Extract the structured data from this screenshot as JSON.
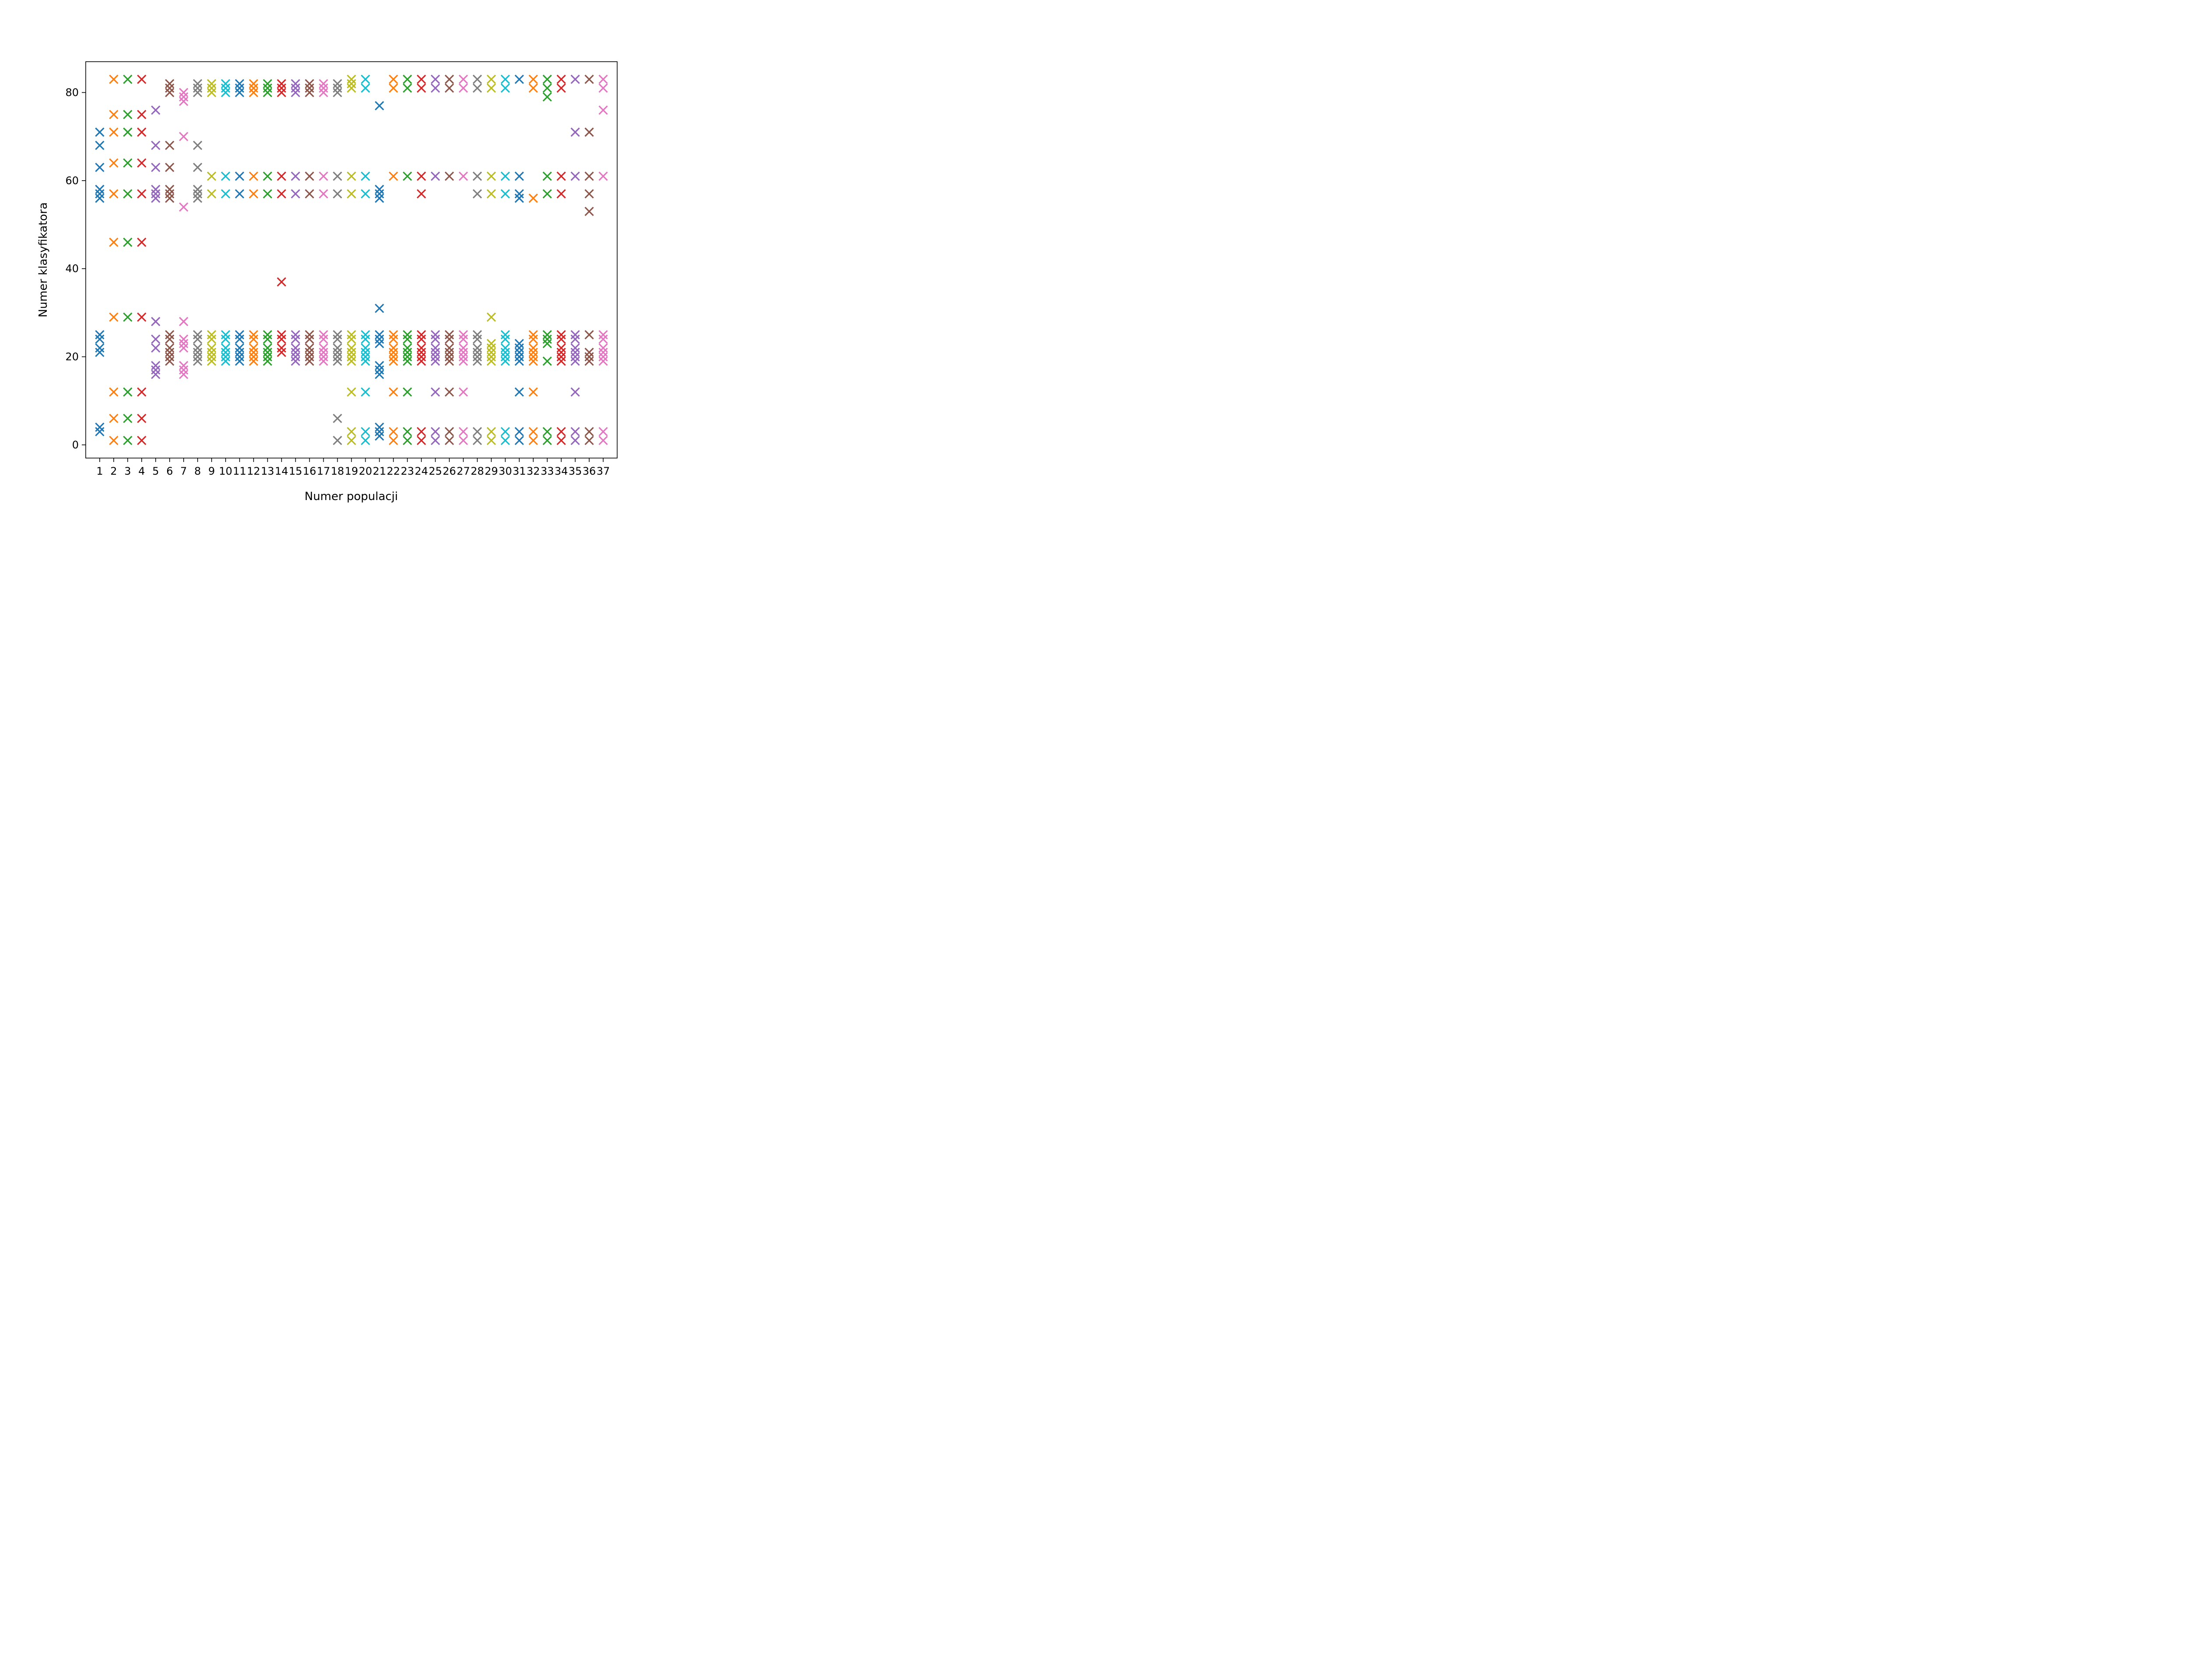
{
  "chart_data": {
    "type": "scatter",
    "marker": "x",
    "xlabel": "Numer populacji",
    "ylabel": "Numer klasyfikatora",
    "xlim": [
      0,
      38
    ],
    "ylim": [
      -3,
      87
    ],
    "xticks": [
      1,
      2,
      3,
      4,
      5,
      6,
      7,
      8,
      9,
      10,
      11,
      12,
      13,
      14,
      15,
      16,
      17,
      18,
      19,
      20,
      21,
      22,
      23,
      24,
      25,
      26,
      27,
      28,
      29,
      30,
      31,
      32,
      33,
      34,
      35,
      36,
      37
    ],
    "yticks": [
      0,
      20,
      40,
      60,
      80
    ],
    "grid": false,
    "legend": "none",
    "palette": [
      "#1f77b4",
      "#ff7f0e",
      "#2ca02c",
      "#d62728",
      "#9467bd",
      "#8c564b",
      "#e377c2",
      "#7f7f7f",
      "#bcbd22",
      "#17becf"
    ],
    "series": [
      {
        "x": 1,
        "y": [
          3,
          4,
          21,
          22,
          24,
          25,
          56,
          57,
          58,
          63,
          68,
          71
        ]
      },
      {
        "x": 2,
        "y": [
          1,
          6,
          12,
          29,
          46,
          57,
          64,
          71,
          75,
          83
        ]
      },
      {
        "x": 3,
        "y": [
          1,
          6,
          12,
          29,
          46,
          57,
          64,
          71,
          75,
          83
        ]
      },
      {
        "x": 4,
        "y": [
          1,
          6,
          12,
          29,
          46,
          57,
          64,
          71,
          75,
          83
        ]
      },
      {
        "x": 5,
        "y": [
          16,
          17,
          18,
          22,
          24,
          28,
          56,
          57,
          58,
          63,
          68,
          76
        ]
      },
      {
        "x": 6,
        "y": [
          19,
          20,
          21,
          22,
          24,
          25,
          56,
          57,
          58,
          63,
          68,
          80,
          81,
          82
        ]
      },
      {
        "x": 7,
        "y": [
          16,
          17,
          18,
          22,
          23,
          24,
          28,
          54,
          70,
          78,
          79,
          80
        ]
      },
      {
        "x": 8,
        "y": [
          19,
          20,
          21,
          22,
          24,
          25,
          56,
          57,
          58,
          63,
          68,
          80,
          81,
          82
        ]
      },
      {
        "x": 9,
        "y": [
          19,
          20,
          21,
          22,
          24,
          25,
          57,
          61,
          80,
          81,
          82
        ]
      },
      {
        "x": 10,
        "y": [
          19,
          20,
          21,
          22,
          24,
          25,
          57,
          61,
          80,
          81,
          82
        ]
      },
      {
        "x": 11,
        "y": [
          19,
          20,
          21,
          22,
          24,
          25,
          57,
          61,
          80,
          81,
          82
        ]
      },
      {
        "x": 12,
        "y": [
          19,
          20,
          21,
          22,
          24,
          25,
          57,
          61,
          80,
          81,
          82
        ]
      },
      {
        "x": 13,
        "y": [
          19,
          20,
          21,
          22,
          24,
          25,
          57,
          61,
          80,
          81,
          82
        ]
      },
      {
        "x": 14,
        "y": [
          21,
          22,
          24,
          25,
          37,
          57,
          61,
          80,
          81,
          82
        ]
      },
      {
        "x": 15,
        "y": [
          19,
          20,
          21,
          22,
          24,
          25,
          57,
          61,
          80,
          81,
          82
        ]
      },
      {
        "x": 16,
        "y": [
          19,
          20,
          21,
          22,
          24,
          25,
          57,
          61,
          80,
          81,
          82
        ]
      },
      {
        "x": 17,
        "y": [
          19,
          20,
          21,
          22,
          24,
          25,
          57,
          61,
          80,
          81,
          82
        ]
      },
      {
        "x": 18,
        "y": [
          1,
          6,
          19,
          20,
          21,
          22,
          24,
          25,
          57,
          61,
          80,
          81,
          82
        ]
      },
      {
        "x": 19,
        "y": [
          1,
          3,
          12,
          19,
          20,
          21,
          22,
          24,
          25,
          57,
          61,
          81,
          82,
          83
        ]
      },
      {
        "x": 20,
        "y": [
          1,
          3,
          12,
          19,
          20,
          21,
          22,
          24,
          25,
          57,
          61,
          81,
          83
        ]
      },
      {
        "x": 21,
        "y": [
          2,
          3,
          4,
          16,
          17,
          18,
          23,
          24,
          25,
          31,
          56,
          57,
          58,
          77
        ]
      },
      {
        "x": 22,
        "y": [
          1,
          3,
          12,
          19,
          20,
          21,
          22,
          24,
          25,
          61,
          81,
          83
        ]
      },
      {
        "x": 23,
        "y": [
          1,
          3,
          12,
          19,
          20,
          21,
          22,
          24,
          25,
          61,
          81,
          83
        ]
      },
      {
        "x": 24,
        "y": [
          1,
          3,
          19,
          20,
          21,
          22,
          24,
          25,
          57,
          61,
          81,
          83
        ]
      },
      {
        "x": 25,
        "y": [
          1,
          3,
          12,
          19,
          20,
          21,
          22,
          24,
          25,
          61,
          81,
          83
        ]
      },
      {
        "x": 26,
        "y": [
          1,
          3,
          12,
          19,
          20,
          21,
          22,
          24,
          25,
          61,
          81,
          83
        ]
      },
      {
        "x": 27,
        "y": [
          1,
          3,
          12,
          19,
          20,
          21,
          22,
          24,
          25,
          61,
          81,
          83
        ]
      },
      {
        "x": 28,
        "y": [
          1,
          3,
          19,
          20,
          21,
          22,
          24,
          25,
          57,
          61,
          81,
          83
        ]
      },
      {
        "x": 29,
        "y": [
          1,
          3,
          19,
          20,
          21,
          22,
          23,
          29,
          57,
          61,
          81,
          83
        ]
      },
      {
        "x": 30,
        "y": [
          1,
          3,
          19,
          20,
          21,
          22,
          24,
          25,
          57,
          61,
          81,
          83
        ]
      },
      {
        "x": 31,
        "y": [
          1,
          3,
          12,
          19,
          20,
          21,
          22,
          23,
          56,
          57,
          61,
          83
        ]
      },
      {
        "x": 32,
        "y": [
          1,
          3,
          12,
          19,
          20,
          21,
          22,
          24,
          25,
          56,
          81,
          83
        ]
      },
      {
        "x": 33,
        "y": [
          1,
          3,
          19,
          23,
          24,
          25,
          57,
          61,
          79,
          81,
          83
        ]
      },
      {
        "x": 34,
        "y": [
          1,
          3,
          19,
          20,
          21,
          22,
          24,
          25,
          57,
          61,
          81,
          83
        ]
      },
      {
        "x": 35,
        "y": [
          1,
          3,
          12,
          19,
          20,
          21,
          22,
          24,
          25,
          61,
          71,
          83
        ]
      },
      {
        "x": 36,
        "y": [
          1,
          3,
          19,
          20,
          21,
          25,
          53,
          57,
          61,
          71,
          83
        ]
      },
      {
        "x": 37,
        "y": [
          1,
          3,
          19,
          20,
          21,
          22,
          24,
          25,
          61,
          76,
          81,
          83
        ]
      }
    ]
  }
}
